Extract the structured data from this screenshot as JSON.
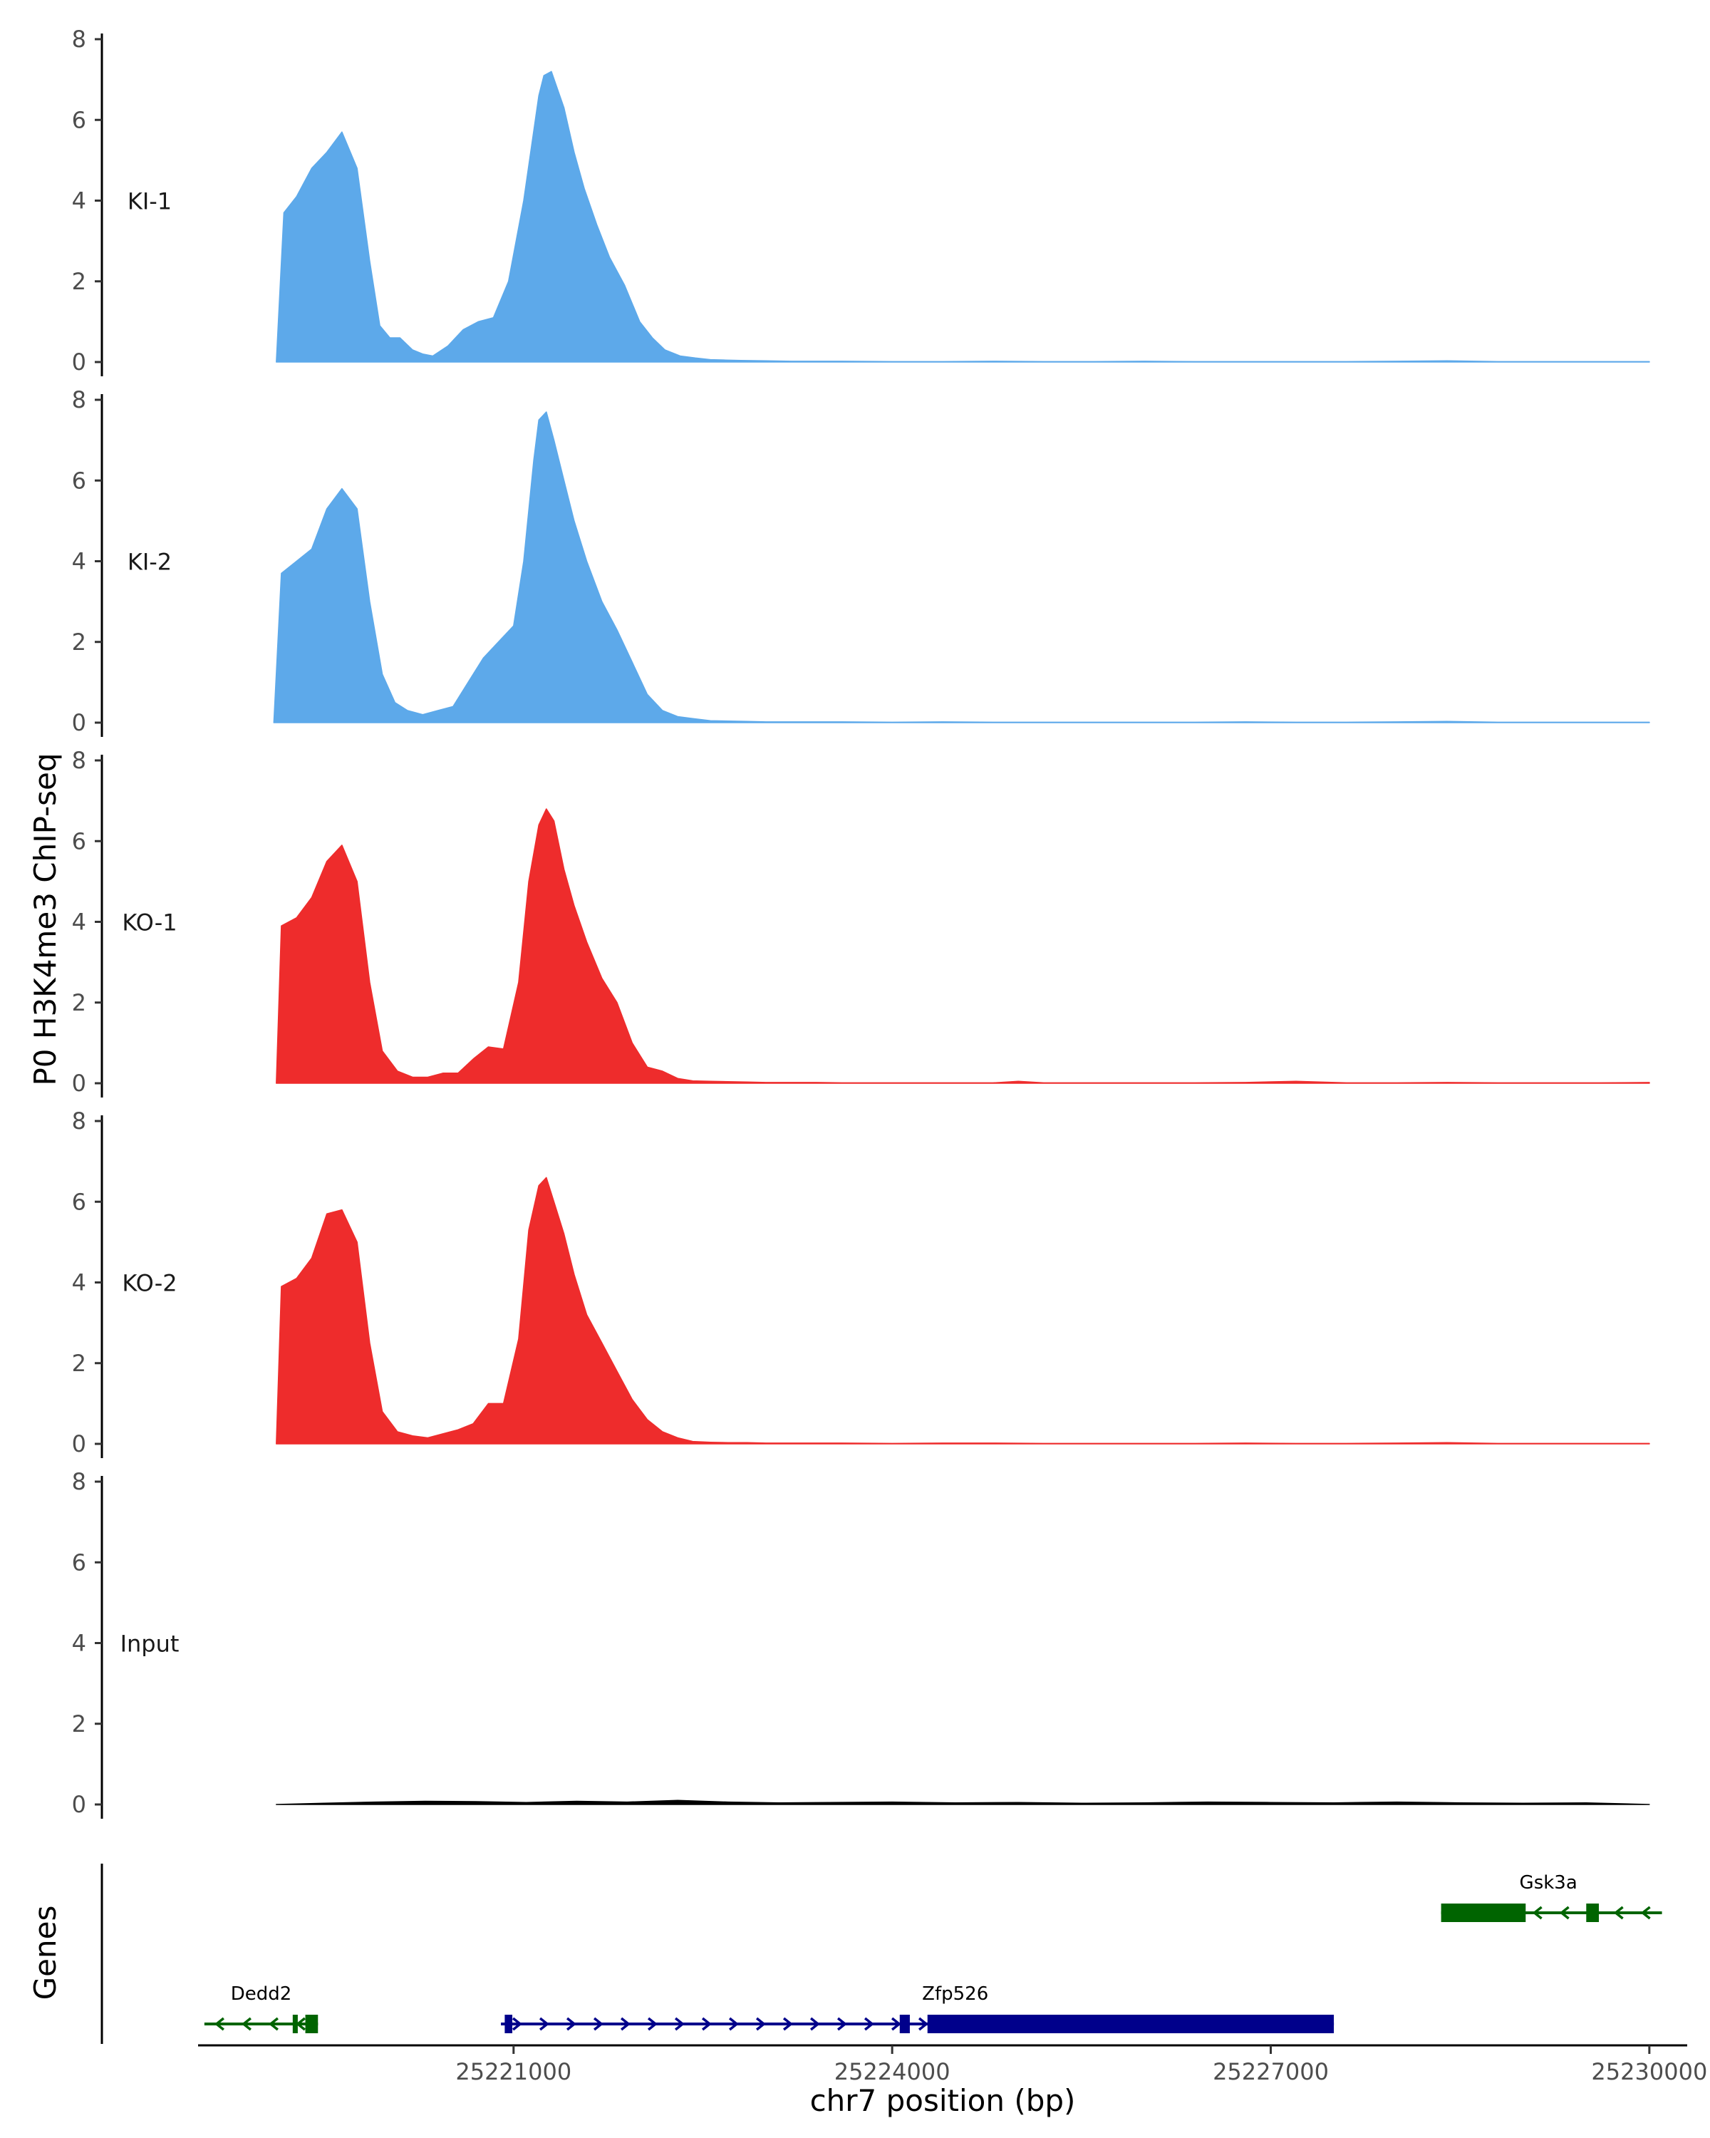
{
  "chart_data": {
    "type": "area",
    "ylabel": "P0 H3K4me3 ChIP-seq",
    "xlabel": "chr7 position (bp)",
    "genes_label": "Genes",
    "xlim": [
      25218500,
      25230300
    ],
    "ylim": [
      0,
      8
    ],
    "y_ticks": [
      0,
      2,
      4,
      6,
      8
    ],
    "x_ticks": [
      25221000,
      25224000,
      25227000,
      25230000
    ],
    "tracks": [
      {
        "name": "KI-1",
        "color": "#5DA9EA",
        "x": [
          25219120,
          25219180,
          25219280,
          25219400,
          25219520,
          25219640,
          25219760,
          25219860,
          25219940,
          25220020,
          25220100,
          25220200,
          25220280,
          25220360,
          25220480,
          25220600,
          25220720,
          25220840,
          25220960,
          25221080,
          25221200,
          25221240,
          25221300,
          25221400,
          25221480,
          25221560,
          25221660,
          25221760,
          25221880,
          25222000,
          25222100,
          25222200,
          25222320,
          25222440,
          25222560,
          25222680,
          25222800,
          25223000,
          25223200,
          25223400,
          25223600,
          25224000,
          25224400,
          25224800,
          25225200,
          25225600,
          25226000,
          25226400,
          25226800,
          25227200,
          25227600,
          25228000,
          25228400,
          25228800,
          25229200,
          25229600,
          25230000
        ],
        "values": [
          0,
          3.7,
          4.1,
          4.8,
          5.2,
          5.7,
          4.8,
          2.5,
          0.9,
          0.6,
          0.6,
          0.3,
          0.2,
          0.15,
          0.4,
          0.8,
          1.0,
          1.1,
          2.0,
          4.0,
          6.6,
          7.1,
          7.2,
          6.3,
          5.2,
          4.3,
          3.4,
          2.6,
          1.9,
          1.0,
          0.6,
          0.3,
          0.15,
          0.1,
          0.06,
          0.05,
          0.04,
          0.03,
          0.02,
          0.02,
          0.02,
          0.01,
          0.01,
          0.02,
          0.01,
          0.01,
          0.02,
          0.01,
          0.01,
          0.01,
          0.01,
          0.02,
          0.03,
          0.01,
          0.01,
          0.01,
          0.01
        ]
      },
      {
        "name": "KI-2",
        "color": "#5DA9EA",
        "x": [
          25219100,
          25219160,
          25219280,
          25219400,
          25219520,
          25219640,
          25219760,
          25219860,
          25219960,
          25220060,
          25220160,
          25220280,
          25220400,
          25220520,
          25220640,
          25220760,
          25220880,
          25221000,
          25221080,
          25221160,
          25221200,
          25221260,
          25221320,
          25221400,
          25221480,
          25221580,
          25221700,
          25221820,
          25221940,
          25222060,
          25222180,
          25222300,
          25222420,
          25222560,
          25222700,
          25222850,
          25223000,
          25223200,
          25223400,
          25223600,
          25224000,
          25224400,
          25224800,
          25225200,
          25225600,
          25226000,
          25226400,
          25226800,
          25227200,
          25227600,
          25228000,
          25228400,
          25228800,
          25229200,
          25229600,
          25230000
        ],
        "values": [
          0,
          3.7,
          4.0,
          4.3,
          5.3,
          5.8,
          5.3,
          3.0,
          1.2,
          0.5,
          0.3,
          0.2,
          0.3,
          0.4,
          1.0,
          1.6,
          2.0,
          2.4,
          4.0,
          6.5,
          7.5,
          7.7,
          7.0,
          6.0,
          5.0,
          4.0,
          3.0,
          2.3,
          1.5,
          0.7,
          0.3,
          0.15,
          0.1,
          0.05,
          0.04,
          0.03,
          0.02,
          0.02,
          0.02,
          0.02,
          0.01,
          0.02,
          0.01,
          0.01,
          0.01,
          0.01,
          0.01,
          0.02,
          0.01,
          0.01,
          0.02,
          0.03,
          0.01,
          0.01,
          0.01,
          0.01
        ]
      },
      {
        "name": "KO-1",
        "color": "#EE2C2C",
        "x": [
          25219120,
          25219160,
          25219280,
          25219400,
          25219520,
          25219640,
          25219760,
          25219860,
          25219960,
          25220080,
          25220200,
          25220320,
          25220440,
          25220560,
          25220680,
          25220800,
          25220920,
          25221040,
          25221120,
          25221200,
          25221260,
          25221320,
          25221400,
          25221480,
          25221580,
          25221700,
          25221820,
          25221940,
          25222060,
          25222180,
          25222300,
          25222420,
          25222560,
          25222700,
          25222850,
          25223000,
          25223200,
          25223400,
          25223600,
          25224000,
          25224400,
          25224800,
          25225000,
          25225200,
          25225600,
          25226000,
          25226400,
          25226800,
          25227200,
          25227600,
          25228000,
          25228400,
          25228800,
          25229200,
          25229600,
          25230000
        ],
        "values": [
          0,
          3.9,
          4.1,
          4.6,
          5.5,
          5.9,
          5.0,
          2.5,
          0.8,
          0.3,
          0.15,
          0.15,
          0.25,
          0.25,
          0.6,
          0.9,
          0.85,
          2.5,
          5.0,
          6.4,
          6.8,
          6.5,
          5.3,
          4.4,
          3.5,
          2.6,
          2.0,
          1.0,
          0.4,
          0.3,
          0.12,
          0.06,
          0.05,
          0.04,
          0.03,
          0.02,
          0.02,
          0.02,
          0.01,
          0.01,
          0.01,
          0.01,
          0.05,
          0.01,
          0.01,
          0.01,
          0.01,
          0.02,
          0.05,
          0.01,
          0.01,
          0.02,
          0.01,
          0.01,
          0.01,
          0.02
        ]
      },
      {
        "name": "KO-2",
        "color": "#EE2C2C",
        "x": [
          25219120,
          25219160,
          25219280,
          25219400,
          25219520,
          25219640,
          25219760,
          25219860,
          25219960,
          25220080,
          25220200,
          25220320,
          25220440,
          25220560,
          25220680,
          25220800,
          25220920,
          25221040,
          25221120,
          25221200,
          25221260,
          25221320,
          25221400,
          25221480,
          25221580,
          25221700,
          25221820,
          25221940,
          25222060,
          25222180,
          25222300,
          25222420,
          25222560,
          25222700,
          25222850,
          25223000,
          25223200,
          25223400,
          25223600,
          25224000,
          25224400,
          25224800,
          25225200,
          25225600,
          25226000,
          25226400,
          25226800,
          25227200,
          25227600,
          25228000,
          25228400,
          25228800,
          25229200,
          25229600,
          25230000
        ],
        "values": [
          0,
          3.9,
          4.1,
          4.6,
          5.7,
          5.8,
          5.0,
          2.5,
          0.8,
          0.3,
          0.2,
          0.15,
          0.25,
          0.35,
          0.5,
          1.0,
          1.0,
          2.6,
          5.3,
          6.4,
          6.6,
          6.0,
          5.2,
          4.2,
          3.2,
          2.5,
          1.8,
          1.1,
          0.6,
          0.3,
          0.15,
          0.06,
          0.04,
          0.03,
          0.03,
          0.02,
          0.02,
          0.02,
          0.02,
          0.01,
          0.02,
          0.02,
          0.01,
          0.01,
          0.01,
          0.01,
          0.02,
          0.01,
          0.01,
          0.02,
          0.03,
          0.01,
          0.01,
          0.01,
          0.01
        ]
      },
      {
        "name": "Input",
        "color": "#000000",
        "x": [
          25219120,
          25219500,
          25219900,
          25220300,
          25220700,
          25221100,
          25221500,
          25221900,
          25222300,
          25222700,
          25223100,
          25223500,
          25224000,
          25224500,
          25225000,
          25225500,
          25226000,
          25226500,
          25227000,
          25227500,
          25228000,
          25228500,
          25229000,
          25229500,
          25230000
        ],
        "values": [
          0,
          0.03,
          0.06,
          0.08,
          0.07,
          0.05,
          0.08,
          0.06,
          0.1,
          0.06,
          0.04,
          0.05,
          0.06,
          0.04,
          0.05,
          0.03,
          0.04,
          0.06,
          0.05,
          0.04,
          0.06,
          0.04,
          0.03,
          0.04,
          0
        ]
      }
    ],
    "genes": [
      {
        "name": "Dedd2",
        "strand": "-",
        "color": "#006400",
        "row": "lower",
        "start": 25218550,
        "end": 25219450,
        "exons": [
          [
            25219350,
            25219450
          ],
          [
            25219250,
            25219290
          ]
        ]
      },
      {
        "name": "Zfp526",
        "strand": "+",
        "color": "#00008B",
        "row": "lower",
        "start": 25220900,
        "end": 25227500,
        "exons": [
          [
            25220930,
            25220990
          ],
          [
            25224060,
            25224140
          ],
          [
            25224280,
            25227500
          ]
        ]
      },
      {
        "name": "Gsk3a",
        "strand": "-",
        "color": "#006400",
        "row": "upper",
        "start": 25228350,
        "end": 25230100,
        "exons": [
          [
            25228350,
            25229020
          ],
          [
            25229500,
            25229600
          ]
        ]
      }
    ]
  }
}
